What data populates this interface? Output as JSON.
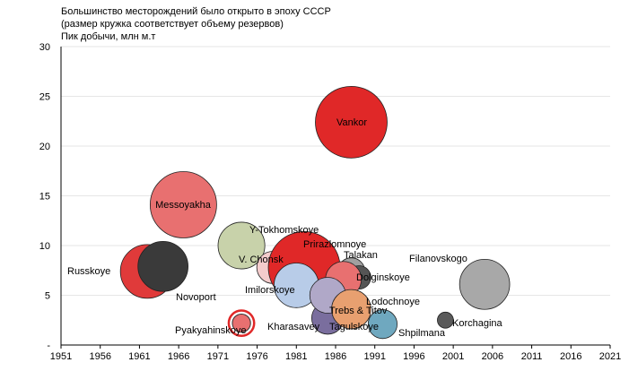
{
  "chart_data": {
    "type": "scatter",
    "title": "Большинство месторождений было открыто в эпоху СССР",
    "subtitle": "(размер кружка соответствует объему резервов)",
    "ylabel": "Пик добычи, млн м.т",
    "xlabel": "",
    "xlim": [
      1951,
      2021
    ],
    "ylim": [
      0,
      30
    ],
    "xticks": [
      "1951",
      "1956",
      "1961",
      "1966",
      "1971",
      "1976",
      "1981",
      "1986",
      "1991",
      "1996",
      "2001",
      "2006",
      "2011",
      "2016",
      "2021"
    ],
    "yticks": [
      "-",
      "5",
      "10",
      "15",
      "20",
      "25",
      "30"
    ],
    "grid": "horizontal",
    "points": [
      {
        "name": "Messoyakha",
        "x": 1966.6,
        "y": 14.1,
        "size": 13.7,
        "color": "#e87070"
      },
      {
        "name": "Russkoye",
        "x": 1962,
        "y": 7.4,
        "size": 9,
        "color": "#e03a3a"
      },
      {
        "name": "Novoport",
        "x": 1964,
        "y": 7.9,
        "size": 7.8,
        "color": "#3a3a3a"
      },
      {
        "name": "Y-Tokhomskoye",
        "x": 1974,
        "y": 10,
        "size": 6.8,
        "color": "#c8d2aa"
      },
      {
        "name": "V. Chonsk",
        "x": 1978,
        "y": 7.8,
        "size": 3.2,
        "color": "#f4cccc"
      },
      {
        "name": "Talakan",
        "x": 1988,
        "y": 7.4,
        "size": 2.3,
        "color": "#a0a0a0"
      },
      {
        "name": "Prirazlomnoye",
        "x": 1982,
        "y": 7.8,
        "size": 16,
        "color": "#e02828"
      },
      {
        "name": "Dolginskoye",
        "x": 1989,
        "y": 6.8,
        "size": 1.7,
        "color": "#555555"
      },
      {
        "name": "Imilorskoye",
        "x": 1981,
        "y": 6,
        "size": 6.2,
        "color": "#b8cce8"
      },
      {
        "name": "Lodochnoye",
        "x": 1987,
        "y": 6.6,
        "size": 4,
        "color": "#e87070"
      },
      {
        "name": "Kharasavey",
        "x": 1985,
        "y": 2.7,
        "size": 3.2,
        "color": "#7a6e9e"
      },
      {
        "name": "Trebs & Titov",
        "x": 1985,
        "y": 5,
        "size": 4,
        "color": "#b0a8c8"
      },
      {
        "name": "Tagulskoye",
        "x": 1988,
        "y": 3.6,
        "size": 4.8,
        "color": "#e8a070"
      },
      {
        "name": "Shpilmana",
        "x": 1992,
        "y": 2.1,
        "size": 2.6,
        "color": "#6fa8bf"
      },
      {
        "name": "Korchagina",
        "x": 2000,
        "y": 2.5,
        "size": 0.8,
        "color": "#5a5a5a"
      },
      {
        "name": "Filanovskogo",
        "x": 2005,
        "y": 6.1,
        "size": 7.8,
        "color": "#a8a8a8"
      },
      {
        "name": "Vankor",
        "x": 1988,
        "y": 22.4,
        "size": 16,
        "color": "#e02828"
      },
      {
        "name": "Pyakyahinskoye",
        "x": 1974,
        "y": 2.2,
        "size": 2,
        "color": "#e87070"
      }
    ]
  }
}
